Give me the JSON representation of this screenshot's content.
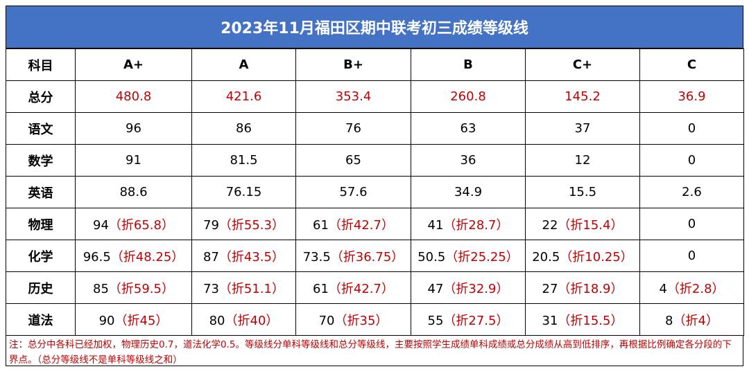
{
  "title": "2023年11月福田区期中联考初三成绩等级线",
  "header": {
    "subject_label": "科目",
    "grades": [
      "A+",
      "A",
      "B+",
      "B",
      "C+",
      "C"
    ]
  },
  "rows": [
    {
      "subject": "总分",
      "cells": [
        {
          "score": "480.8",
          "fold": ""
        },
        {
          "score": "421.6",
          "fold": ""
        },
        {
          "score": "353.4",
          "fold": ""
        },
        {
          "score": "260.8",
          "fold": ""
        },
        {
          "score": "145.2",
          "fold": ""
        },
        {
          "score": "36.9",
          "fold": ""
        }
      ]
    },
    {
      "subject": "语文",
      "cells": [
        {
          "score": "96",
          "fold": ""
        },
        {
          "score": "86",
          "fold": ""
        },
        {
          "score": "76",
          "fold": ""
        },
        {
          "score": "63",
          "fold": ""
        },
        {
          "score": "37",
          "fold": ""
        },
        {
          "score": "0",
          "fold": ""
        }
      ]
    },
    {
      "subject": "数学",
      "cells": [
        {
          "score": "91",
          "fold": ""
        },
        {
          "score": "81.5",
          "fold": ""
        },
        {
          "score": "65",
          "fold": ""
        },
        {
          "score": "36",
          "fold": ""
        },
        {
          "score": "12",
          "fold": ""
        },
        {
          "score": "0",
          "fold": ""
        }
      ]
    },
    {
      "subject": "英语",
      "cells": [
        {
          "score": "88.6",
          "fold": ""
        },
        {
          "score": "76.15",
          "fold": ""
        },
        {
          "score": "57.6",
          "fold": ""
        },
        {
          "score": "34.9",
          "fold": ""
        },
        {
          "score": "15.5",
          "fold": ""
        },
        {
          "score": "2.6",
          "fold": ""
        }
      ]
    },
    {
      "subject": "物理",
      "cells": [
        {
          "score": "94",
          "fold": "（折65.8）"
        },
        {
          "score": "79",
          "fold": "（折55.3）"
        },
        {
          "score": "61",
          "fold": "（折42.7）"
        },
        {
          "score": "41",
          "fold": "（折28.7）"
        },
        {
          "score": "22",
          "fold": "（折15.4）"
        },
        {
          "score": "0",
          "fold": ""
        }
      ]
    },
    {
      "subject": "化学",
      "cells": [
        {
          "score": "96.5",
          "fold": "（折48.25）"
        },
        {
          "score": "87",
          "fold": "（折43.5）"
        },
        {
          "score": "73.5",
          "fold": "（折36.75）"
        },
        {
          "score": "50.5",
          "fold": "（折25.25）"
        },
        {
          "score": "20.5",
          "fold": "（折10.25）"
        },
        {
          "score": "0",
          "fold": ""
        }
      ]
    },
    {
      "subject": "历史",
      "cells": [
        {
          "score": "85",
          "fold": "（折59.5）"
        },
        {
          "score": "73",
          "fold": "（折51.1）"
        },
        {
          "score": "61",
          "fold": "（折42.7）"
        },
        {
          "score": "47",
          "fold": "（折32.9）"
        },
        {
          "score": "27",
          "fold": "（折18.9）"
        },
        {
          "score": "4",
          "fold": "（折2.8）"
        }
      ]
    },
    {
      "subject": "道法",
      "cells": [
        {
          "score": "90",
          "fold": "（折45）"
        },
        {
          "score": "80",
          "fold": "（折40）"
        },
        {
          "score": "70",
          "fold": "（折35）"
        },
        {
          "score": "55",
          "fold": "（折27.5）"
        },
        {
          "score": "31",
          "fold": "（折15.5）"
        },
        {
          "score": "8",
          "fold": "（折4）"
        }
      ]
    }
  ],
  "note": "注：总分中各科已经加权，物理历史0.7，道法化学0.5。等级线分单科等级线和总分等级线，主要按照学生成绩单科成绩或总分成绩从高到低排序，再根据比例确定各分段的下界点。（总分等级线不是单科等级线之和）",
  "colors": {
    "title_bg": "#4472c4",
    "title_text": "#ffffff",
    "accent_red": "#c00000",
    "text": "#000000"
  }
}
